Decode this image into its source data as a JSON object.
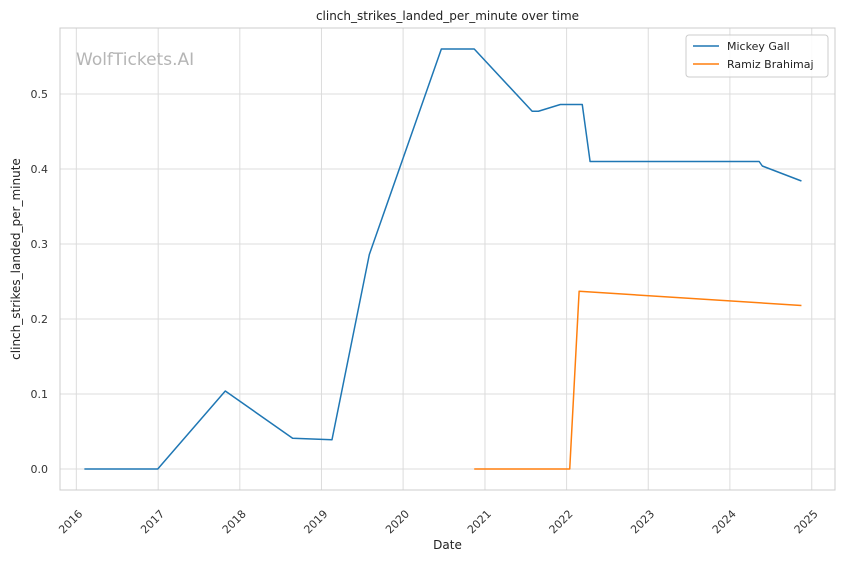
{
  "chart_data": {
    "type": "line",
    "title": "clinch_strikes_landed_per_minute over time",
    "xlabel": "Date",
    "ylabel": "clinch_strikes_landed_per_minute",
    "watermark": "WolfTickets.AI",
    "x_ticks": [
      "2016",
      "2017",
      "2018",
      "2019",
      "2020",
      "2021",
      "2022",
      "2023",
      "2024",
      "2025"
    ],
    "y_ticks": [
      "0.0",
      "0.1",
      "0.2",
      "0.3",
      "0.4",
      "0.5"
    ],
    "xlim": [
      "2015-10-20",
      "2025-04-15"
    ],
    "ylim": [
      -0.028,
      0.588
    ],
    "grid": true,
    "legend_position": "top-right",
    "series": [
      {
        "name": "Mickey Gall",
        "color": "#1f77b4",
        "points": [
          [
            "2016-02-06",
            0.0
          ],
          [
            "2016-12-30",
            0.0
          ],
          [
            "2017-10-28",
            0.104
          ],
          [
            "2018-08-25",
            0.041
          ],
          [
            "2019-02-17",
            0.039
          ],
          [
            "2019-08-03",
            0.286
          ],
          [
            "2020-06-20",
            0.56
          ],
          [
            "2020-11-14",
            0.56
          ],
          [
            "2021-07-31",
            0.477
          ],
          [
            "2021-08-28",
            0.477
          ],
          [
            "2021-12-04",
            0.486
          ],
          [
            "2022-03-12",
            0.486
          ],
          [
            "2022-04-16",
            0.41
          ],
          [
            "2024-05-11",
            0.41
          ],
          [
            "2024-05-25",
            0.404
          ],
          [
            "2024-11-16",
            0.384
          ]
        ]
      },
      {
        "name": "Ramiz Brahimaj",
        "color": "#ff7f0e",
        "points": [
          [
            "2020-11-14",
            0.0
          ],
          [
            "2022-01-15",
            0.0
          ],
          [
            "2022-02-26",
            0.237
          ],
          [
            "2024-11-16",
            0.218
          ]
        ]
      }
    ]
  }
}
